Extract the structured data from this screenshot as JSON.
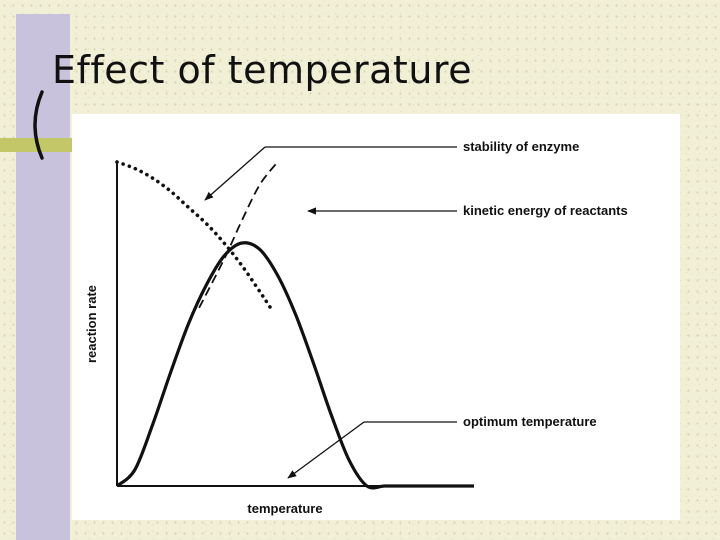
{
  "slide": {
    "title": "Effect of temperature",
    "colors": {
      "background": "#f1efd6",
      "sidebar_bar": "#c8c2dd",
      "accent_bar": "#c4c768",
      "panel": "#ffffff",
      "ink": "#111111"
    }
  },
  "chart_data": {
    "type": "line",
    "title": "",
    "xlabel": "temperature",
    "ylabel": "reaction rate",
    "xlim": [
      0,
      100
    ],
    "ylim": [
      0,
      100
    ],
    "grid": false,
    "ticks": false,
    "series": [
      {
        "name": "reaction rate",
        "style": "solid",
        "x": [
          0,
          5,
          10,
          15,
          20,
          25,
          30,
          35,
          40,
          45,
          50,
          55,
          60,
          65,
          70,
          75,
          80,
          85,
          90,
          95,
          100
        ],
        "y": [
          0,
          5,
          19,
          35,
          50,
          62,
          71,
          75,
          73,
          65,
          53,
          38,
          22,
          8,
          0,
          0,
          0,
          0,
          0,
          0,
          0
        ]
      },
      {
        "name": "stability of enzyme",
        "style": "dotted",
        "x": [
          0,
          5,
          10,
          15,
          20,
          25,
          30,
          35,
          40,
          43
        ],
        "y": [
          100,
          98,
          95,
          91,
          86,
          81,
          75,
          68,
          60,
          55
        ]
      },
      {
        "name": "kinetic energy of reactants",
        "style": "dashed",
        "x": [
          23,
          30,
          35,
          40,
          45
        ],
        "y": [
          55,
          70,
          82,
          93,
          100
        ]
      }
    ],
    "annotations": [
      {
        "text": "stability of enzyme"
      },
      {
        "text": "kinetic energy of reactants"
      },
      {
        "text": "optimum temperature"
      }
    ]
  }
}
